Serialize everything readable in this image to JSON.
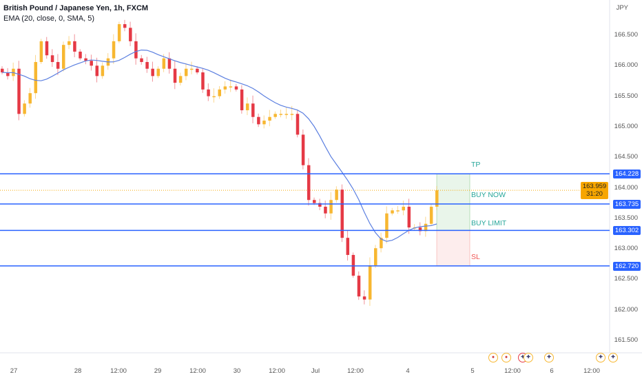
{
  "legend": {
    "title": "British Pound / Japanese Yen, 1h, FXCM",
    "indicator": "EMA (20, close, 0, SMA, 5)"
  },
  "currency": "JPY",
  "colors": {
    "bull": "#f7b731",
    "bear": "#e53945",
    "ema": "#5b7fe0",
    "level": "#2962ff",
    "tp": "#26a69a",
    "sl": "#ef5350",
    "current": "#f7a600"
  },
  "chart_data": {
    "type": "candlestick",
    "ylim": [
      161.3,
      167.0
    ],
    "y_ticks": [
      "166.500",
      "166.000",
      "165.500",
      "165.000",
      "164.500",
      "164.000",
      "163.500",
      "163.000",
      "162.500",
      "162.000",
      "161.500"
    ],
    "x_ticks": [
      "27",
      "28",
      "12:00",
      "29",
      "12:00",
      "30",
      "12:00",
      "Jul",
      "12:00",
      "4",
      "5",
      "12:00",
      "6",
      "12:00"
    ],
    "closes": [
      165.89,
      165.83,
      165.95,
      165.21,
      165.38,
      165.55,
      166.06,
      166.4,
      166.17,
      166.06,
      165.95,
      166.34,
      166.4,
      166.23,
      166.12,
      166.08,
      166.0,
      165.83,
      166.0,
      166.12,
      166.4,
      166.68,
      166.62,
      166.4,
      166.12,
      166.06,
      165.95,
      165.83,
      165.95,
      166.12,
      165.95,
      165.72,
      165.83,
      165.95,
      165.95,
      165.89,
      165.61,
      165.5,
      165.5,
      165.61,
      165.66,
      165.66,
      165.61,
      165.27,
      165.38,
      165.16,
      165.04,
      165.1,
      165.16,
      165.21,
      165.21,
      165.21,
      165.21,
      164.87,
      164.37,
      163.8,
      163.75,
      163.69,
      163.58,
      163.8,
      163.97,
      163.18,
      162.9,
      162.56,
      162.22,
      162.17,
      162.73,
      163.01,
      163.18,
      163.58,
      163.63,
      163.63,
      163.69,
      163.35,
      163.35,
      163.29,
      163.41,
      163.69,
      163.959
    ],
    "ema_label": "EMA (20, close, 0, SMA, 5)",
    "levels": [
      {
        "price": 164.228,
        "label": "164.228",
        "name": "TP",
        "tag": "TP"
      },
      {
        "price": 163.735,
        "label": "163.735",
        "name": "BUY NOW",
        "tag": "BUY NOW"
      },
      {
        "price": 163.302,
        "label": "163.302",
        "name": "BUY LIMIT",
        "tag": "BUY LIMIT"
      },
      {
        "price": 162.72,
        "label": "162.720",
        "name": "SL",
        "tag": "SL"
      }
    ],
    "current_price": {
      "price": 163.959,
      "label": "163.959",
      "countdown": "31:20"
    }
  }
}
